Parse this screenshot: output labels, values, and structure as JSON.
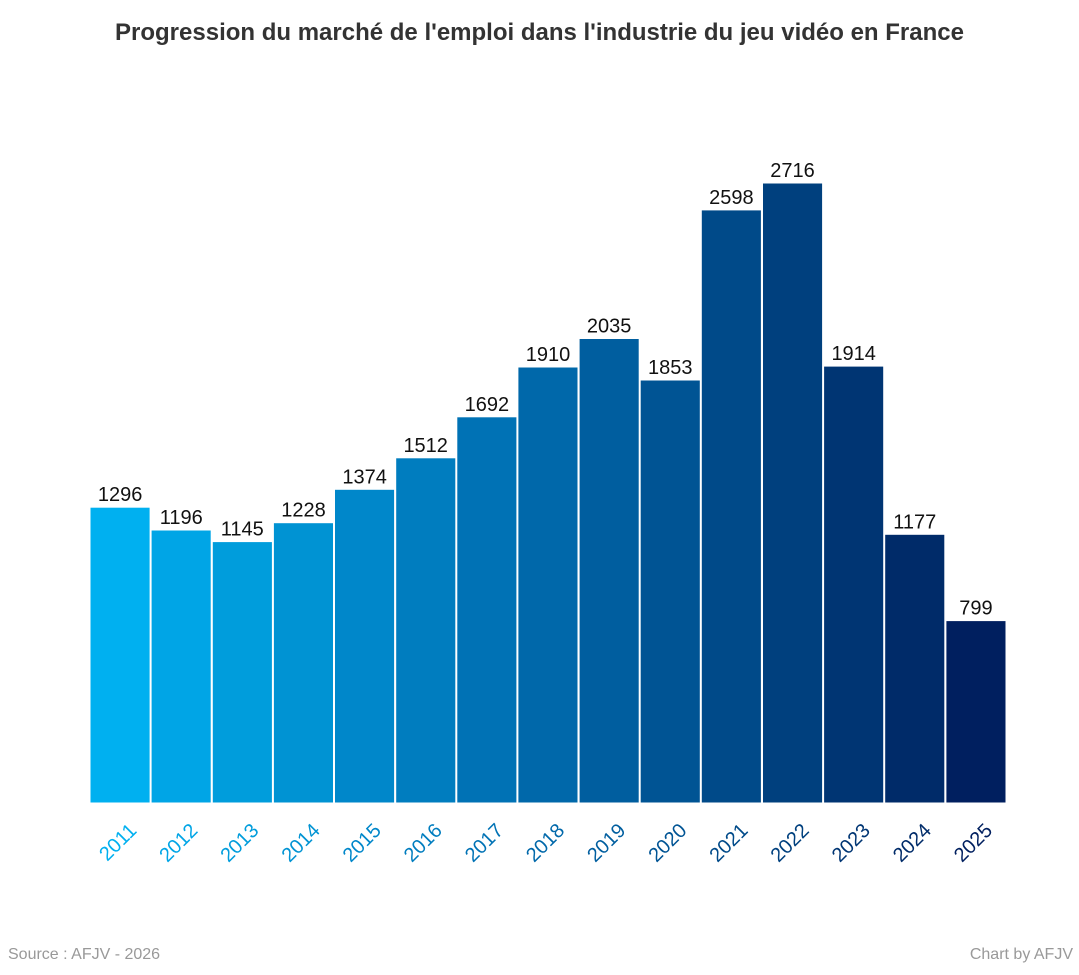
{
  "chart_data": {
    "type": "bar",
    "title": "Progression du marché de l'emploi dans l'industrie du jeu vidéo en France",
    "xlabel": "",
    "ylabel": "",
    "categories": [
      "2011",
      "2012",
      "2013",
      "2014",
      "2015",
      "2016",
      "2017",
      "2018",
      "2019",
      "2020",
      "2021",
      "2022",
      "2023",
      "2024",
      "2025"
    ],
    "values": [
      1296,
      1196,
      1145,
      1228,
      1374,
      1512,
      1692,
      1910,
      2035,
      1853,
      2598,
      2716,
      1914,
      1177,
      799
    ],
    "ylim": [
      0,
      2716
    ],
    "grid": false,
    "legend": "none",
    "data_labels": true,
    "colors": [
      "#00B0F0",
      "#00A5E6",
      "#009DDC",
      "#0093D3",
      "#0087CA",
      "#007DBF",
      "#0072B5",
      "#0068AA",
      "#005E9F",
      "#005494",
      "#004A89",
      "#00407E",
      "#003573",
      "#002B69",
      "#001F5F"
    ]
  },
  "footer": {
    "source": "Source : AFJV - 2026",
    "credit": "Chart by AFJV"
  }
}
